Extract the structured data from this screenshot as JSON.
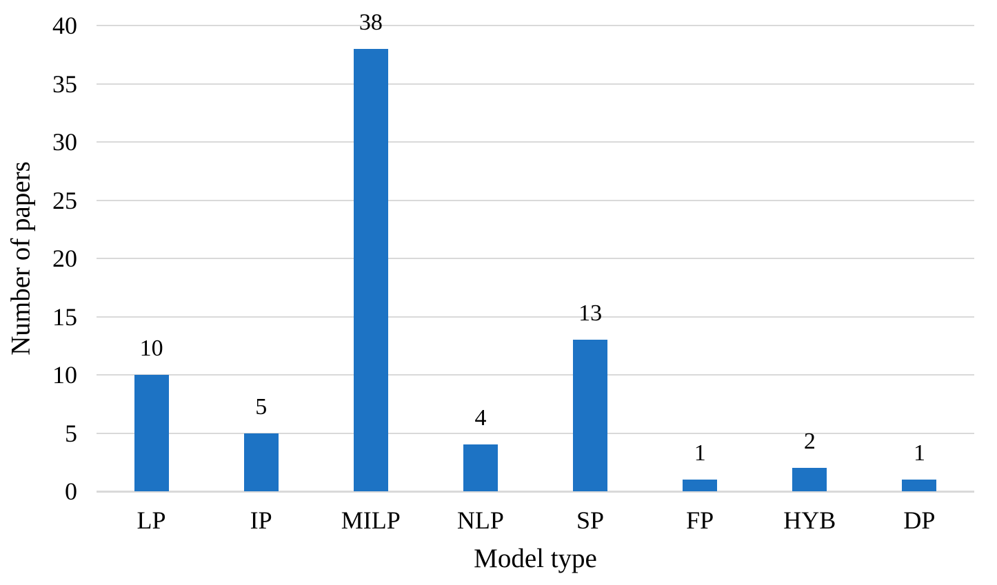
{
  "chart_data": {
    "type": "bar",
    "categories": [
      "LP",
      "IP",
      "MILP",
      "NLP",
      "SP",
      "FP",
      "HYB",
      "DP"
    ],
    "values": [
      10,
      5,
      38,
      4,
      13,
      1,
      2,
      1
    ],
    "value_labels": [
      "10",
      "5",
      "38",
      "4",
      "13",
      "1",
      "2",
      "1"
    ],
    "title": "",
    "xlabel": "Model type",
    "ylabel": "Number of papers",
    "ylim": [
      0,
      40
    ],
    "ytick_step": 5,
    "ytick_labels": [
      "0",
      "5",
      "10",
      "15",
      "20",
      "25",
      "30",
      "35",
      "40"
    ],
    "grid": true,
    "legend": false,
    "legend_position": "none",
    "bar_color": "#1D73C4",
    "gridline_color": "#D9D9D9",
    "axis_line_color": "#D9D9D9",
    "text_color": "#000000",
    "background_color": "#FFFFFF"
  }
}
